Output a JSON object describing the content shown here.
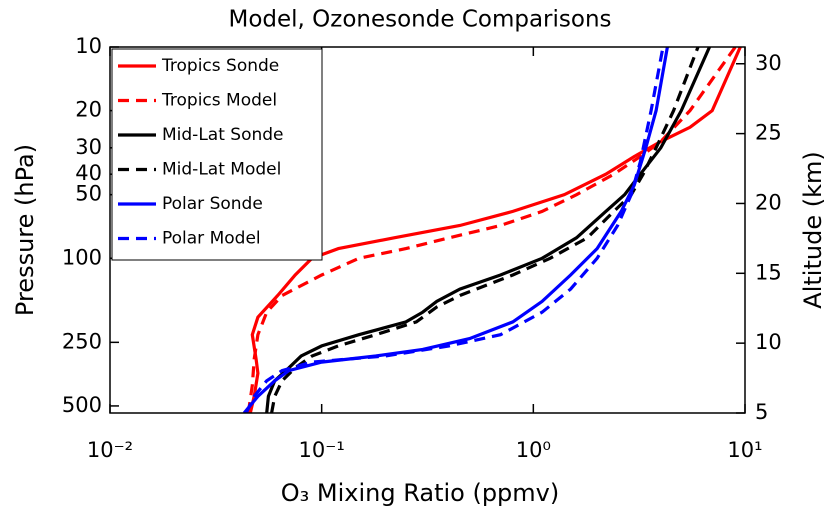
{
  "chart_data": {
    "type": "line",
    "title": "Model, Ozonesonde Comparisons",
    "x_label": "O₃ Mixing Ratio (ppmv)",
    "y_label": "Pressure (hPa)",
    "y2_label": "Altitude (km)",
    "xscale": "log",
    "yscale": "log",
    "y_inverted": true,
    "xlim": [
      0.01,
      10
    ],
    "xticks": [
      {
        "value": 0.01,
        "label": "10⁻²"
      },
      {
        "value": 0.1,
        "label": "10⁻¹"
      },
      {
        "value": 1,
        "label": "10⁰"
      },
      {
        "value": 10,
        "label": "10¹"
      }
    ],
    "ylim": [
      10,
      540
    ],
    "yticks": [
      10,
      20,
      30,
      40,
      50,
      100,
      250,
      500
    ],
    "y2lim": [
      5,
      31.2
    ],
    "y2ticks": [
      5,
      10,
      15,
      20,
      25,
      30
    ],
    "grid": false,
    "legend": "upper left",
    "series": [
      {
        "name": "Tropics Sonde",
        "color": "#ff0000",
        "dash": "solid",
        "x": [
          0.046,
          0.048,
          0.05,
          0.049,
          0.047,
          0.05,
          0.062,
          0.075,
          0.09,
          0.12,
          0.22,
          0.45,
          0.8,
          1.4,
          2.2,
          3.0,
          4.0,
          5.5,
          7.0,
          9.5
        ],
        "y": [
          540,
          450,
          350,
          300,
          230,
          190,
          150,
          120,
          100,
          90,
          80,
          70,
          60,
          50,
          40,
          33,
          28,
          24,
          20,
          10
        ]
      },
      {
        "name": "Tropics Model",
        "color": "#ff0000",
        "dash": "dashed",
        "x": [
          0.045,
          0.047,
          0.048,
          0.05,
          0.055,
          0.065,
          0.1,
          0.15,
          0.25,
          0.4,
          0.7,
          1.1,
          1.6,
          2.4,
          3.2,
          4.0,
          5.5,
          9.0
        ],
        "y": [
          540,
          400,
          300,
          230,
          180,
          150,
          120,
          100,
          90,
          80,
          70,
          60,
          50,
          40,
          33,
          28,
          20,
          10
        ]
      },
      {
        "name": "Mid-Lat Sonde",
        "color": "#000000",
        "dash": "solid",
        "x": [
          0.055,
          0.056,
          0.06,
          0.07,
          0.08,
          0.1,
          0.15,
          0.25,
          0.3,
          0.35,
          0.45,
          0.7,
          1.1,
          1.6,
          2.2,
          2.7,
          3.2,
          4.0,
          5.0,
          6.8
        ],
        "y": [
          540,
          450,
          380,
          330,
          290,
          260,
          230,
          200,
          180,
          160,
          140,
          120,
          100,
          80,
          60,
          50,
          40,
          30,
          20,
          10
        ]
      },
      {
        "name": "Mid-Lat Model",
        "color": "#000000",
        "dash": "dashed",
        "x": [
          0.058,
          0.06,
          0.065,
          0.075,
          0.09,
          0.12,
          0.18,
          0.28,
          0.35,
          0.45,
          0.8,
          1.2,
          1.8,
          2.4,
          2.9,
          3.3,
          3.8,
          4.6,
          6.0
        ],
        "y": [
          540,
          450,
          380,
          330,
          290,
          260,
          230,
          200,
          170,
          150,
          120,
          100,
          80,
          60,
          50,
          40,
          30,
          20,
          10
        ]
      },
      {
        "name": "Polar Sonde",
        "color": "#0000ff",
        "dash": "solid",
        "x": [
          0.043,
          0.05,
          0.06,
          0.07,
          0.1,
          0.18,
          0.3,
          0.5,
          0.8,
          1.1,
          1.5,
          2.0,
          2.6,
          3.0,
          3.4,
          3.8,
          4.3
        ],
        "y": [
          540,
          450,
          380,
          340,
          310,
          290,
          270,
          240,
          200,
          160,
          120,
          90,
          60,
          45,
          30,
          20,
          10
        ]
      },
      {
        "name": "Polar Model",
        "color": "#0000ff",
        "dash": "dashed",
        "x": [
          0.044,
          0.048,
          0.055,
          0.065,
          0.09,
          0.2,
          0.4,
          0.7,
          1.1,
          1.5,
          2.0,
          2.5,
          2.9,
          3.2,
          3.6,
          4.1
        ],
        "y": [
          540,
          450,
          380,
          340,
          310,
          290,
          260,
          230,
          180,
          140,
          100,
          70,
          50,
          35,
          20,
          10
        ]
      }
    ]
  }
}
